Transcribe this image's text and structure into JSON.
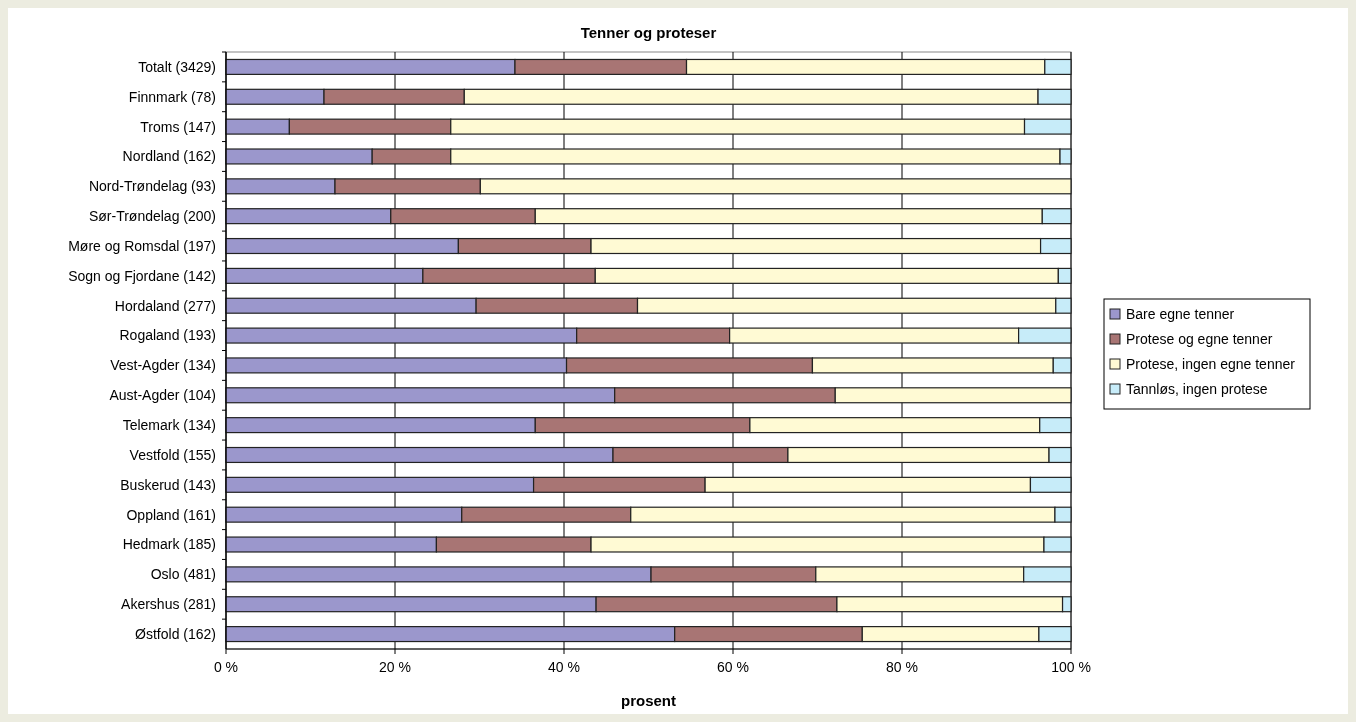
{
  "chart_data": {
    "type": "bar",
    "orientation": "horizontal",
    "stacked": true,
    "title": "Tenner og proteser",
    "xlabel": "prosent",
    "categories": [
      "Totalt (3429)",
      "Finnmark (78)",
      "Troms (147)",
      "Nordland (162)",
      "Nord-Trøndelag (93)",
      "Sør-Trøndelag (200)",
      "Møre og Romsdal (197)",
      "Sogn og Fjordane (142)",
      "Hordaland (277)",
      "Rogaland (193)",
      "Vest-Agder (134)",
      "Aust-Agder (104)",
      "Telemark (134)",
      "Vestfold (155)",
      "Buskerud (143)",
      "Oppland (161)",
      "Hedmark (185)",
      "Oslo (481)",
      "Akershus (281)",
      "Østfold (162)"
    ],
    "series": [
      {
        "name": "Bare egne tenner",
        "color": "#9b97cc",
        "values": [
          34.2,
          11.6,
          7.5,
          17.3,
          12.9,
          19.5,
          27.5,
          23.3,
          29.6,
          41.5,
          40.3,
          46,
          36.6,
          45.8,
          36.4,
          27.9,
          24.9,
          50.3,
          43.8,
          53.1
        ]
      },
      {
        "name": "Protese og egne tenner",
        "color": "#a87574",
        "values": [
          20.3,
          16.6,
          19.1,
          9.3,
          17.2,
          17.1,
          15.7,
          20.4,
          19.1,
          18.1,
          29.1,
          26.1,
          25.4,
          20.7,
          20.3,
          20,
          18.3,
          19.5,
          28.5,
          22.2
        ]
      },
      {
        "name": "Protese, ingen egne tenner",
        "color": "#fffad4",
        "values": [
          42.4,
          67.9,
          67.9,
          72.1,
          69.9,
          60,
          53.2,
          54.8,
          49.5,
          34.2,
          28.5,
          27.9,
          34.3,
          30.9,
          38.5,
          50.2,
          53.6,
          24.6,
          26.7,
          20.9
        ]
      },
      {
        "name": "Tannløs, ingen protese",
        "color": "#c7ecf9",
        "values": [
          3.1,
          3.9,
          5.5,
          1.3,
          0,
          3.4,
          3.6,
          1.5,
          1.8,
          6.2,
          2.1,
          0,
          3.7,
          2.6,
          4.8,
          1.9,
          3.2,
          5.6,
          1,
          3.8
        ]
      }
    ],
    "xlim": [
      0,
      100
    ],
    "xticks": [
      {
        "value": 0,
        "label": "0 %"
      },
      {
        "value": 20,
        "label": "20 %"
      },
      {
        "value": 40,
        "label": "40 %"
      },
      {
        "value": 60,
        "label": "60 %"
      },
      {
        "value": 80,
        "label": "80 %"
      },
      {
        "value": 100,
        "label": "100 %"
      }
    ],
    "grid": "x",
    "legend": "right"
  }
}
